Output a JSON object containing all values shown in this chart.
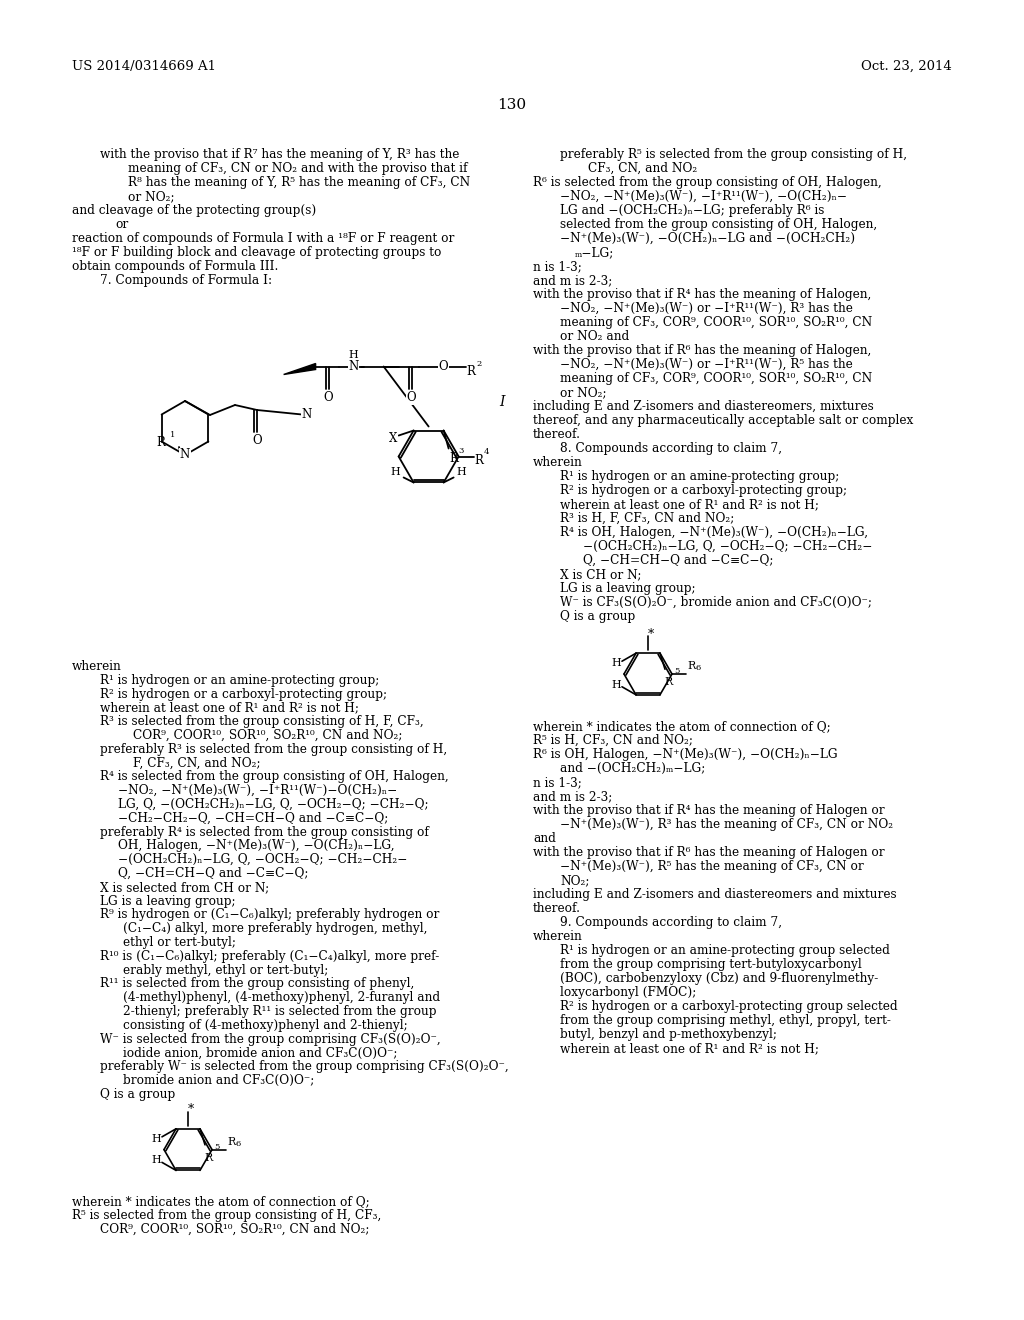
{
  "bg": "#ffffff",
  "header_left": "US 2014/0314669 A1",
  "header_right": "Oct. 23, 2014",
  "page_number": "130"
}
